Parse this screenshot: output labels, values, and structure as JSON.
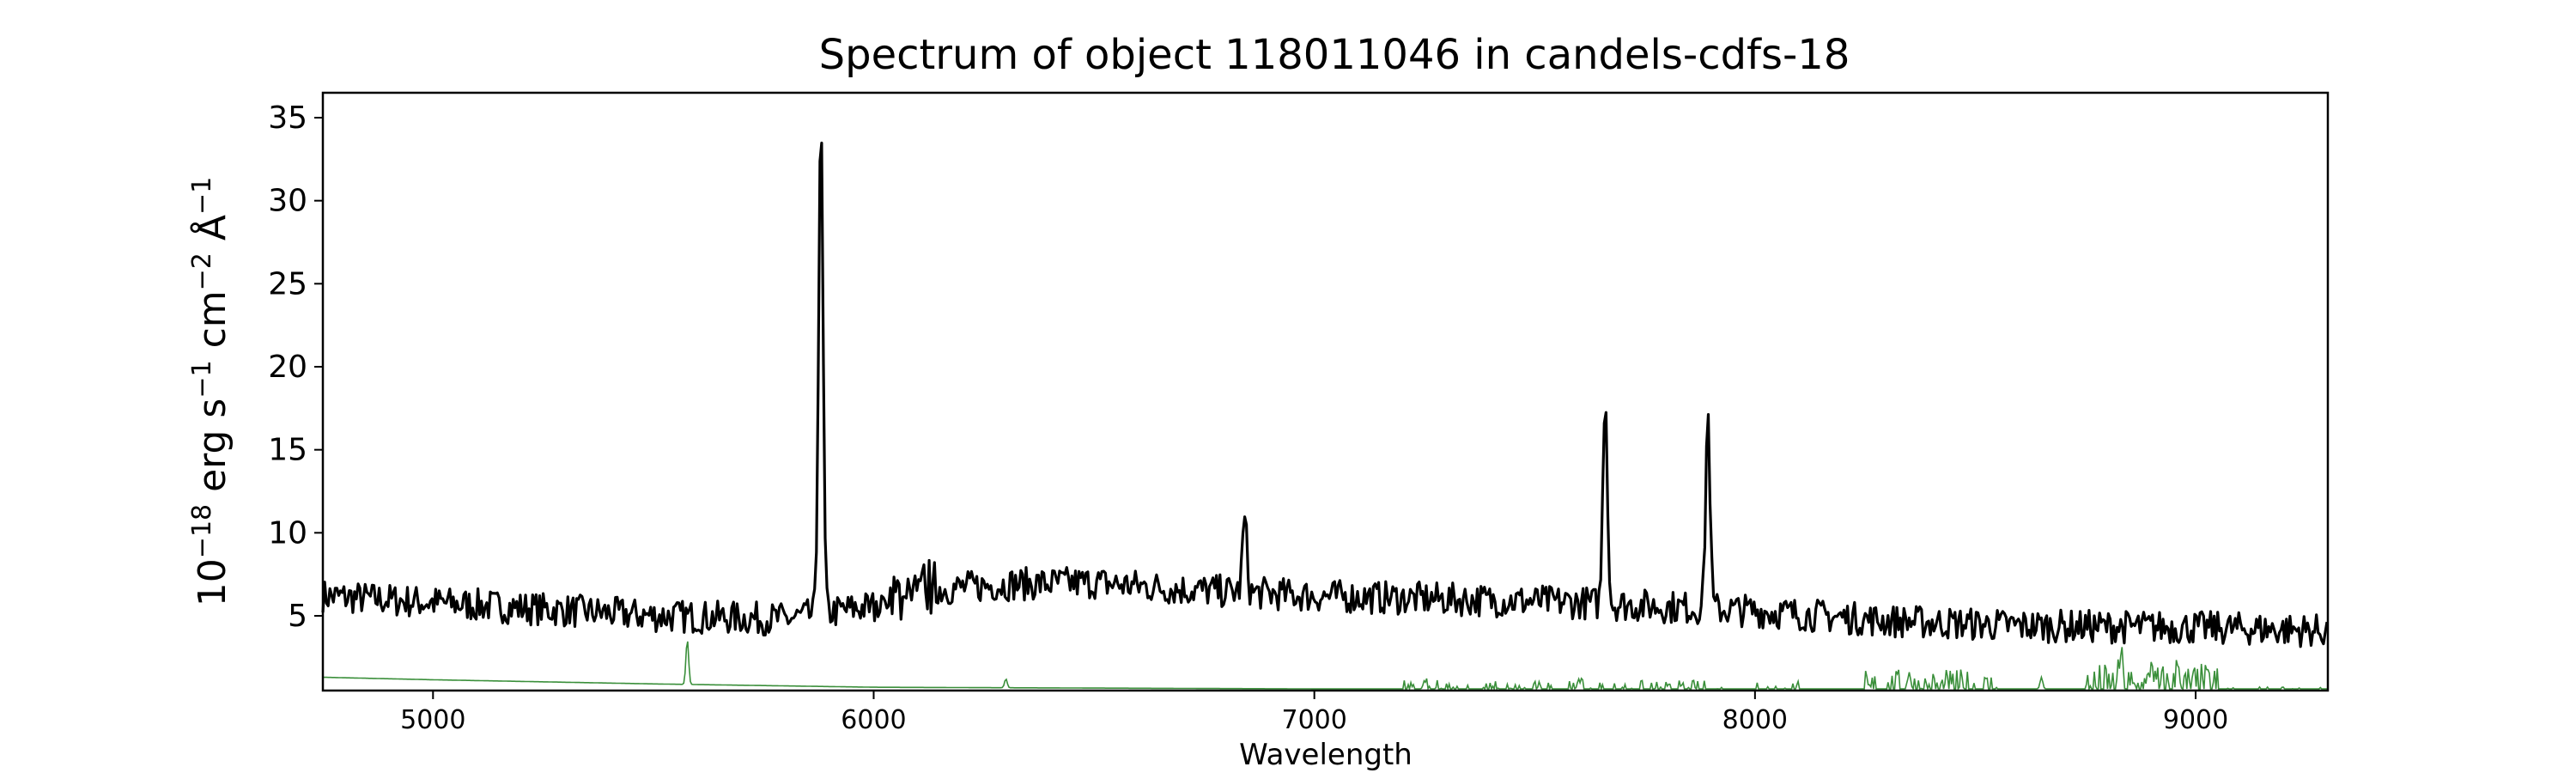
{
  "chart_data": {
    "type": "line",
    "title": "Spectrum of object 118011046 in candels-cdfs-18",
    "xlabel": "Wavelength",
    "ylabel_parts": [
      "10",
      "−18",
      " erg s",
      "−1",
      " cm",
      "−2",
      " Å",
      "−1"
    ],
    "xlim": [
      4750,
      9300
    ],
    "ylim": [
      0.5,
      36.5
    ],
    "xticks": [
      5000,
      6000,
      7000,
      8000,
      9000
    ],
    "yticks": [
      5,
      10,
      15,
      20,
      25,
      30,
      35
    ],
    "grid": false,
    "series": [
      {
        "role": "flux",
        "color": "#000000",
        "continuum": [
          [
            4750,
            6.2
          ],
          [
            5000,
            5.8
          ],
          [
            5500,
            5.0
          ],
          [
            5800,
            4.8
          ],
          [
            6000,
            5.6
          ],
          [
            6100,
            6.5
          ],
          [
            6300,
            6.9
          ],
          [
            6500,
            7.0
          ],
          [
            6700,
            6.6
          ],
          [
            7000,
            6.2
          ],
          [
            7300,
            6.0
          ],
          [
            7600,
            5.8
          ],
          [
            8000,
            5.3
          ],
          [
            8300,
            4.7
          ],
          [
            8600,
            4.4
          ],
          [
            9000,
            4.3
          ],
          [
            9300,
            4.1
          ]
        ],
        "emission_lines": [
          {
            "x": 5880,
            "peak": 35.0
          },
          {
            "x": 6842,
            "peak": 10.8
          },
          {
            "x": 7660,
            "peak": 18.4
          },
          {
            "x": 7893,
            "peak": 17.1
          }
        ]
      },
      {
        "role": "sky",
        "color": "#3a8f3a",
        "baseline": [
          [
            4750,
            1.3
          ],
          [
            5000,
            1.15
          ],
          [
            5500,
            0.9
          ],
          [
            6000,
            0.7
          ],
          [
            7000,
            0.6
          ],
          [
            9300,
            0.6
          ]
        ],
        "features": [
          {
            "x": 5577,
            "peak": 3.6
          },
          {
            "x": 6300,
            "peak": 1.2
          },
          {
            "x": 7250,
            "peak": 1.1
          },
          {
            "x": 7600,
            "peak": 1.2
          },
          {
            "x": 8350,
            "peak": 1.6
          },
          {
            "x": 8650,
            "peak": 1.3
          },
          {
            "x": 8830,
            "peak": 2.6
          },
          {
            "x": 8900,
            "peak": 2.3
          },
          {
            "x": 8960,
            "peak": 2.1
          }
        ]
      }
    ]
  }
}
